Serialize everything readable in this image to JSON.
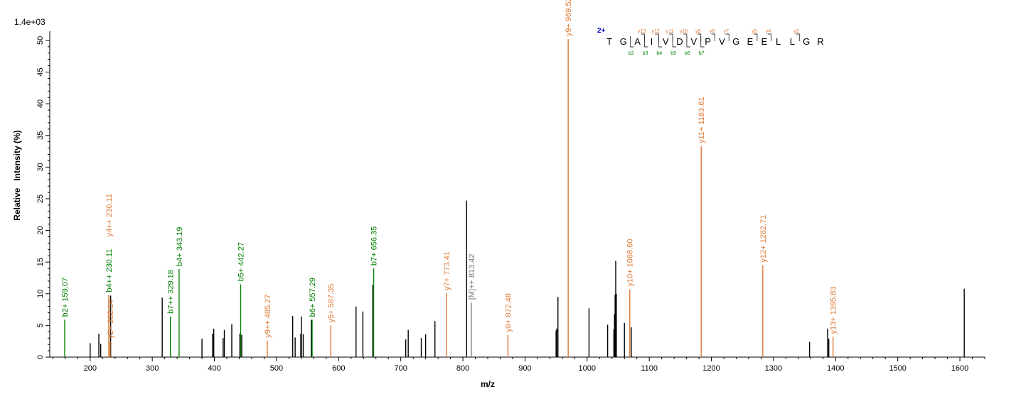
{
  "chart_data": {
    "type": "bar",
    "scale_label": "1.4e+03",
    "xlabel": "m/z",
    "ylabel": "Relative   Intensity (%)",
    "xlim": [
      135,
      1640
    ],
    "ylim": [
      0,
      51
    ],
    "x_ticks": [
      200,
      300,
      400,
      500,
      600,
      700,
      800,
      900,
      1000,
      1100,
      1200,
      1300,
      1400,
      1500,
      1600
    ],
    "y_ticks": [
      0,
      5,
      10,
      15,
      20,
      25,
      30,
      35,
      40,
      45,
      50
    ],
    "colors": {
      "b_ion": "#008000",
      "y_ion": "#e07b39",
      "precursor": "#777777",
      "unassigned": "#000000"
    },
    "peaks_unassigned": [
      [
        200,
        2.2
      ],
      [
        214,
        3.7
      ],
      [
        217,
        2.1
      ],
      [
        233,
        9.7
      ],
      [
        316,
        9.4
      ],
      [
        380,
        2.9
      ],
      [
        397,
        3.7
      ],
      [
        399,
        4.5
      ],
      [
        414,
        3.0
      ],
      [
        416,
        4.3
      ],
      [
        428,
        5.2
      ],
      [
        441,
        3.7
      ],
      [
        444,
        3.5
      ],
      [
        526,
        6.5
      ],
      [
        530,
        3.1
      ],
      [
        539,
        3.7
      ],
      [
        540,
        6.4
      ],
      [
        543,
        3.6
      ],
      [
        556,
        5.9
      ],
      [
        628,
        8.0
      ],
      [
        639,
        7.2
      ],
      [
        655,
        11.4
      ],
      [
        708,
        2.8
      ],
      [
        712,
        4.3
      ],
      [
        733,
        3.0
      ],
      [
        740,
        3.6
      ],
      [
        755,
        5.7
      ],
      [
        806,
        24.7
      ],
      [
        950,
        4.2
      ],
      [
        951,
        4.5
      ],
      [
        953,
        9.5
      ],
      [
        1003,
        7.7
      ],
      [
        1033,
        5.1
      ],
      [
        1043,
        4.4
      ],
      [
        1044,
        6.8
      ],
      [
        1045,
        9.9
      ],
      [
        1046,
        15.2
      ],
      [
        1047,
        10.0
      ],
      [
        1060,
        5.4
      ],
      [
        1071,
        4.7
      ],
      [
        1358,
        2.4
      ],
      [
        1387,
        4.5
      ],
      [
        1389,
        2.9
      ],
      [
        1607,
        10.8
      ]
    ],
    "peaks_assigned": [
      {
        "mz": 159.07,
        "intensity": 5.9,
        "ion": "b",
        "label": "b2+ 159.07"
      },
      {
        "mz": 230.11,
        "intensity": 9.8,
        "ion": "b",
        "label": "b4++ 230.11"
      },
      {
        "mz": 230.11,
        "intensity": 9.8,
        "ion": "y",
        "label": "y4++ 230.11"
      },
      {
        "mz": 232.14,
        "intensity": 2.5,
        "ion": "y",
        "label": "y2+ 232.14"
      },
      {
        "mz": 329.18,
        "intensity": 6.4,
        "ion": "b",
        "label": "b7++ 329.18"
      },
      {
        "mz": 343.19,
        "intensity": 13.9,
        "ion": "b",
        "label": "b4+ 343.19"
      },
      {
        "mz": 442.27,
        "intensity": 11.5,
        "ion": "b",
        "label": "b5+ 442.27"
      },
      {
        "mz": 485.27,
        "intensity": 2.6,
        "ion": "y",
        "label": "y9++ 485.27"
      },
      {
        "mz": 557.29,
        "intensity": 5.9,
        "ion": "b",
        "label": "b6+ 557.29"
      },
      {
        "mz": 587.35,
        "intensity": 5.0,
        "ion": "y",
        "label": "y5+ 587.35"
      },
      {
        "mz": 656.35,
        "intensity": 14.0,
        "ion": "b",
        "label": "b7+ 656.35"
      },
      {
        "mz": 773.41,
        "intensity": 10.1,
        "ion": "y",
        "label": "y7+ 773.41"
      },
      {
        "mz": 813.42,
        "intensity": 8.6,
        "ion": "precursor",
        "label": "[M]++ 813.42"
      },
      {
        "mz": 872.48,
        "intensity": 3.5,
        "ion": "y",
        "label": "y8+ 872.48"
      },
      {
        "mz": 969.52,
        "intensity": 50.2,
        "ion": "y",
        "label": "y9+ 969.52"
      },
      {
        "mz": 1068.6,
        "intensity": 10.7,
        "ion": "y",
        "label": "y10+ 1068.60"
      },
      {
        "mz": 1183.61,
        "intensity": 33.3,
        "ion": "y",
        "label": "y11+ 1183.61"
      },
      {
        "mz": 1282.71,
        "intensity": 14.5,
        "ion": "y",
        "label": "y12+ 1282.71"
      },
      {
        "mz": 1395.83,
        "intensity": 3.2,
        "ion": "y",
        "label": "y13+ 1395.83"
      }
    ],
    "peptide": {
      "charge": "2+",
      "residues": [
        "T",
        "G",
        "A",
        "I",
        "V",
        "D",
        "V",
        "P",
        "V",
        "G",
        "E",
        "E",
        "L",
        "L",
        "G",
        "R"
      ],
      "y_ions": [
        {
          "after": 3,
          "label": "y13"
        },
        {
          "after": 4,
          "label": "y12"
        },
        {
          "after": 5,
          "label": "y11"
        },
        {
          "after": 6,
          "label": "y10"
        },
        {
          "after": 7,
          "label": "y9"
        },
        {
          "after": 8,
          "label": "y8"
        },
        {
          "after": 9,
          "label": "y7"
        },
        {
          "after": 11,
          "label": "y5"
        },
        {
          "after": 12,
          "label": "y4"
        },
        {
          "after": 14,
          "label": "y2"
        }
      ],
      "b_ions": [
        {
          "after": 2,
          "label": "b2"
        },
        {
          "after": 3,
          "label": "b3"
        },
        {
          "after": 4,
          "label": "b4"
        },
        {
          "after": 5,
          "label": "b5"
        },
        {
          "after": 6,
          "label": "b6"
        },
        {
          "after": 7,
          "label": "b7"
        }
      ]
    }
  }
}
